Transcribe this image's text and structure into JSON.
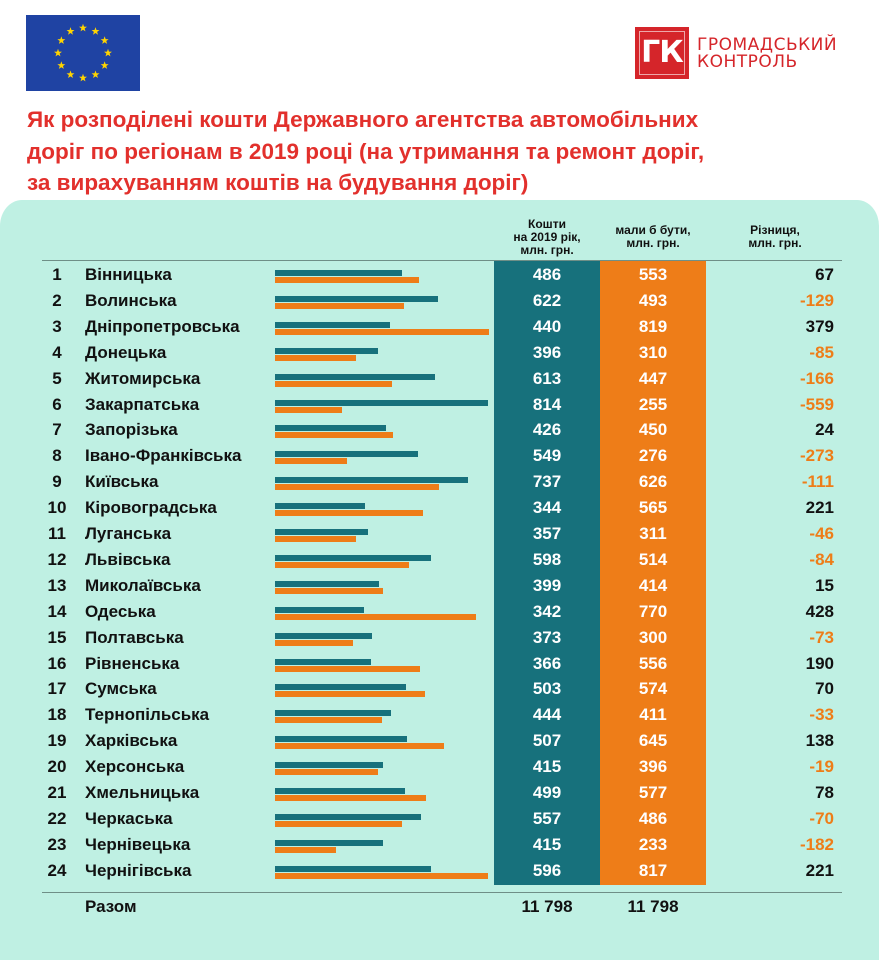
{
  "branding": {
    "logo_mark": "ГК",
    "logo_text_line1": "ГРОМАДСЬКИЙ",
    "logo_text_line2": "КОНТРОЛЬ",
    "flag_icon": "eu-flag-icon"
  },
  "colors": {
    "title": "#e2302c",
    "fact": "#17717c",
    "plan": "#ee7d18",
    "background": "#bff0e3",
    "diff_negative": "#ee7d18",
    "diff_positive": "#111111"
  },
  "chart_data": {
    "type": "bar",
    "title": "Як розподілені кошти Державного агентства автомобільних доріг по регіонам в 2019 році (на утримання та ремонт доріг, за вирахуванням коштів на будування доріг)",
    "title_lines": [
      "Як розподілені кошти Державного агентства автомобільних",
      "доріг по регіонам в 2019 році (на утримання та ремонт доріг,",
      "за вирахуванням коштів на будування доріг)"
    ],
    "columns": {
      "fact": "Кошти\nна 2019 рік,\nмлн. грн.",
      "plan": "мали б бути,\nмлн. грн.",
      "diff": "Різниця,\nмлн. грн."
    },
    "categories": [
      "Вінницька",
      "Волинська",
      "Дніпропетровська",
      "Донецька",
      "Житомирська",
      "Закарпатська",
      "Запорізька",
      "Івано-Франківська",
      "Київська",
      "Кіровоградська",
      "Луганська",
      "Львівська",
      "Миколаївська",
      "Одеська",
      "Полтавська",
      "Рівненська",
      "Сумська",
      "Тернопільська",
      "Харківська",
      "Херсонська",
      "Хмельницька",
      "Черкаська",
      "Чернівецька",
      "Чернігівська"
    ],
    "numbers": [
      "1",
      "2",
      "3",
      "4",
      "5",
      "6",
      "7",
      "8",
      "9",
      "10",
      "11",
      "12",
      "13",
      "14",
      "15",
      "16",
      "17",
      "18",
      "19",
      "20",
      "21",
      "22",
      "23",
      "24"
    ],
    "series": [
      {
        "name": "Кошти на 2019 рік, млн. грн.",
        "values": [
          486,
          622,
          440,
          396,
          613,
          814,
          426,
          549,
          737,
          344,
          357,
          598,
          399,
          342,
          373,
          366,
          503,
          444,
          507,
          415,
          499,
          557,
          415,
          596
        ]
      },
      {
        "name": "мали б бути, млн. грн.",
        "values": [
          553,
          493,
          819,
          310,
          447,
          255,
          450,
          276,
          626,
          565,
          311,
          514,
          414,
          770,
          300,
          556,
          574,
          411,
          645,
          396,
          577,
          486,
          233,
          817
        ]
      }
    ],
    "diff_labels": [
      "67",
      "-129",
      "379",
      "-85",
      "-166",
      "-559",
      "24",
      "-273",
      "-111",
      "221",
      "-46",
      "-84",
      "15",
      "428",
      "-73",
      "190",
      "70",
      "-33",
      "138",
      "-19",
      "78",
      "-70",
      "-182",
      "221"
    ],
    "diff_values": [
      67,
      -129,
      379,
      -85,
      -166,
      -559,
      24,
      -273,
      -111,
      221,
      -46,
      -84,
      15,
      428,
      -73,
      190,
      70,
      -33,
      138,
      -19,
      78,
      -70,
      -182,
      221
    ],
    "xlim": [
      0,
      819
    ],
    "total_label": "Разом",
    "total_fact": "11 798",
    "total_plan": "11 798"
  }
}
